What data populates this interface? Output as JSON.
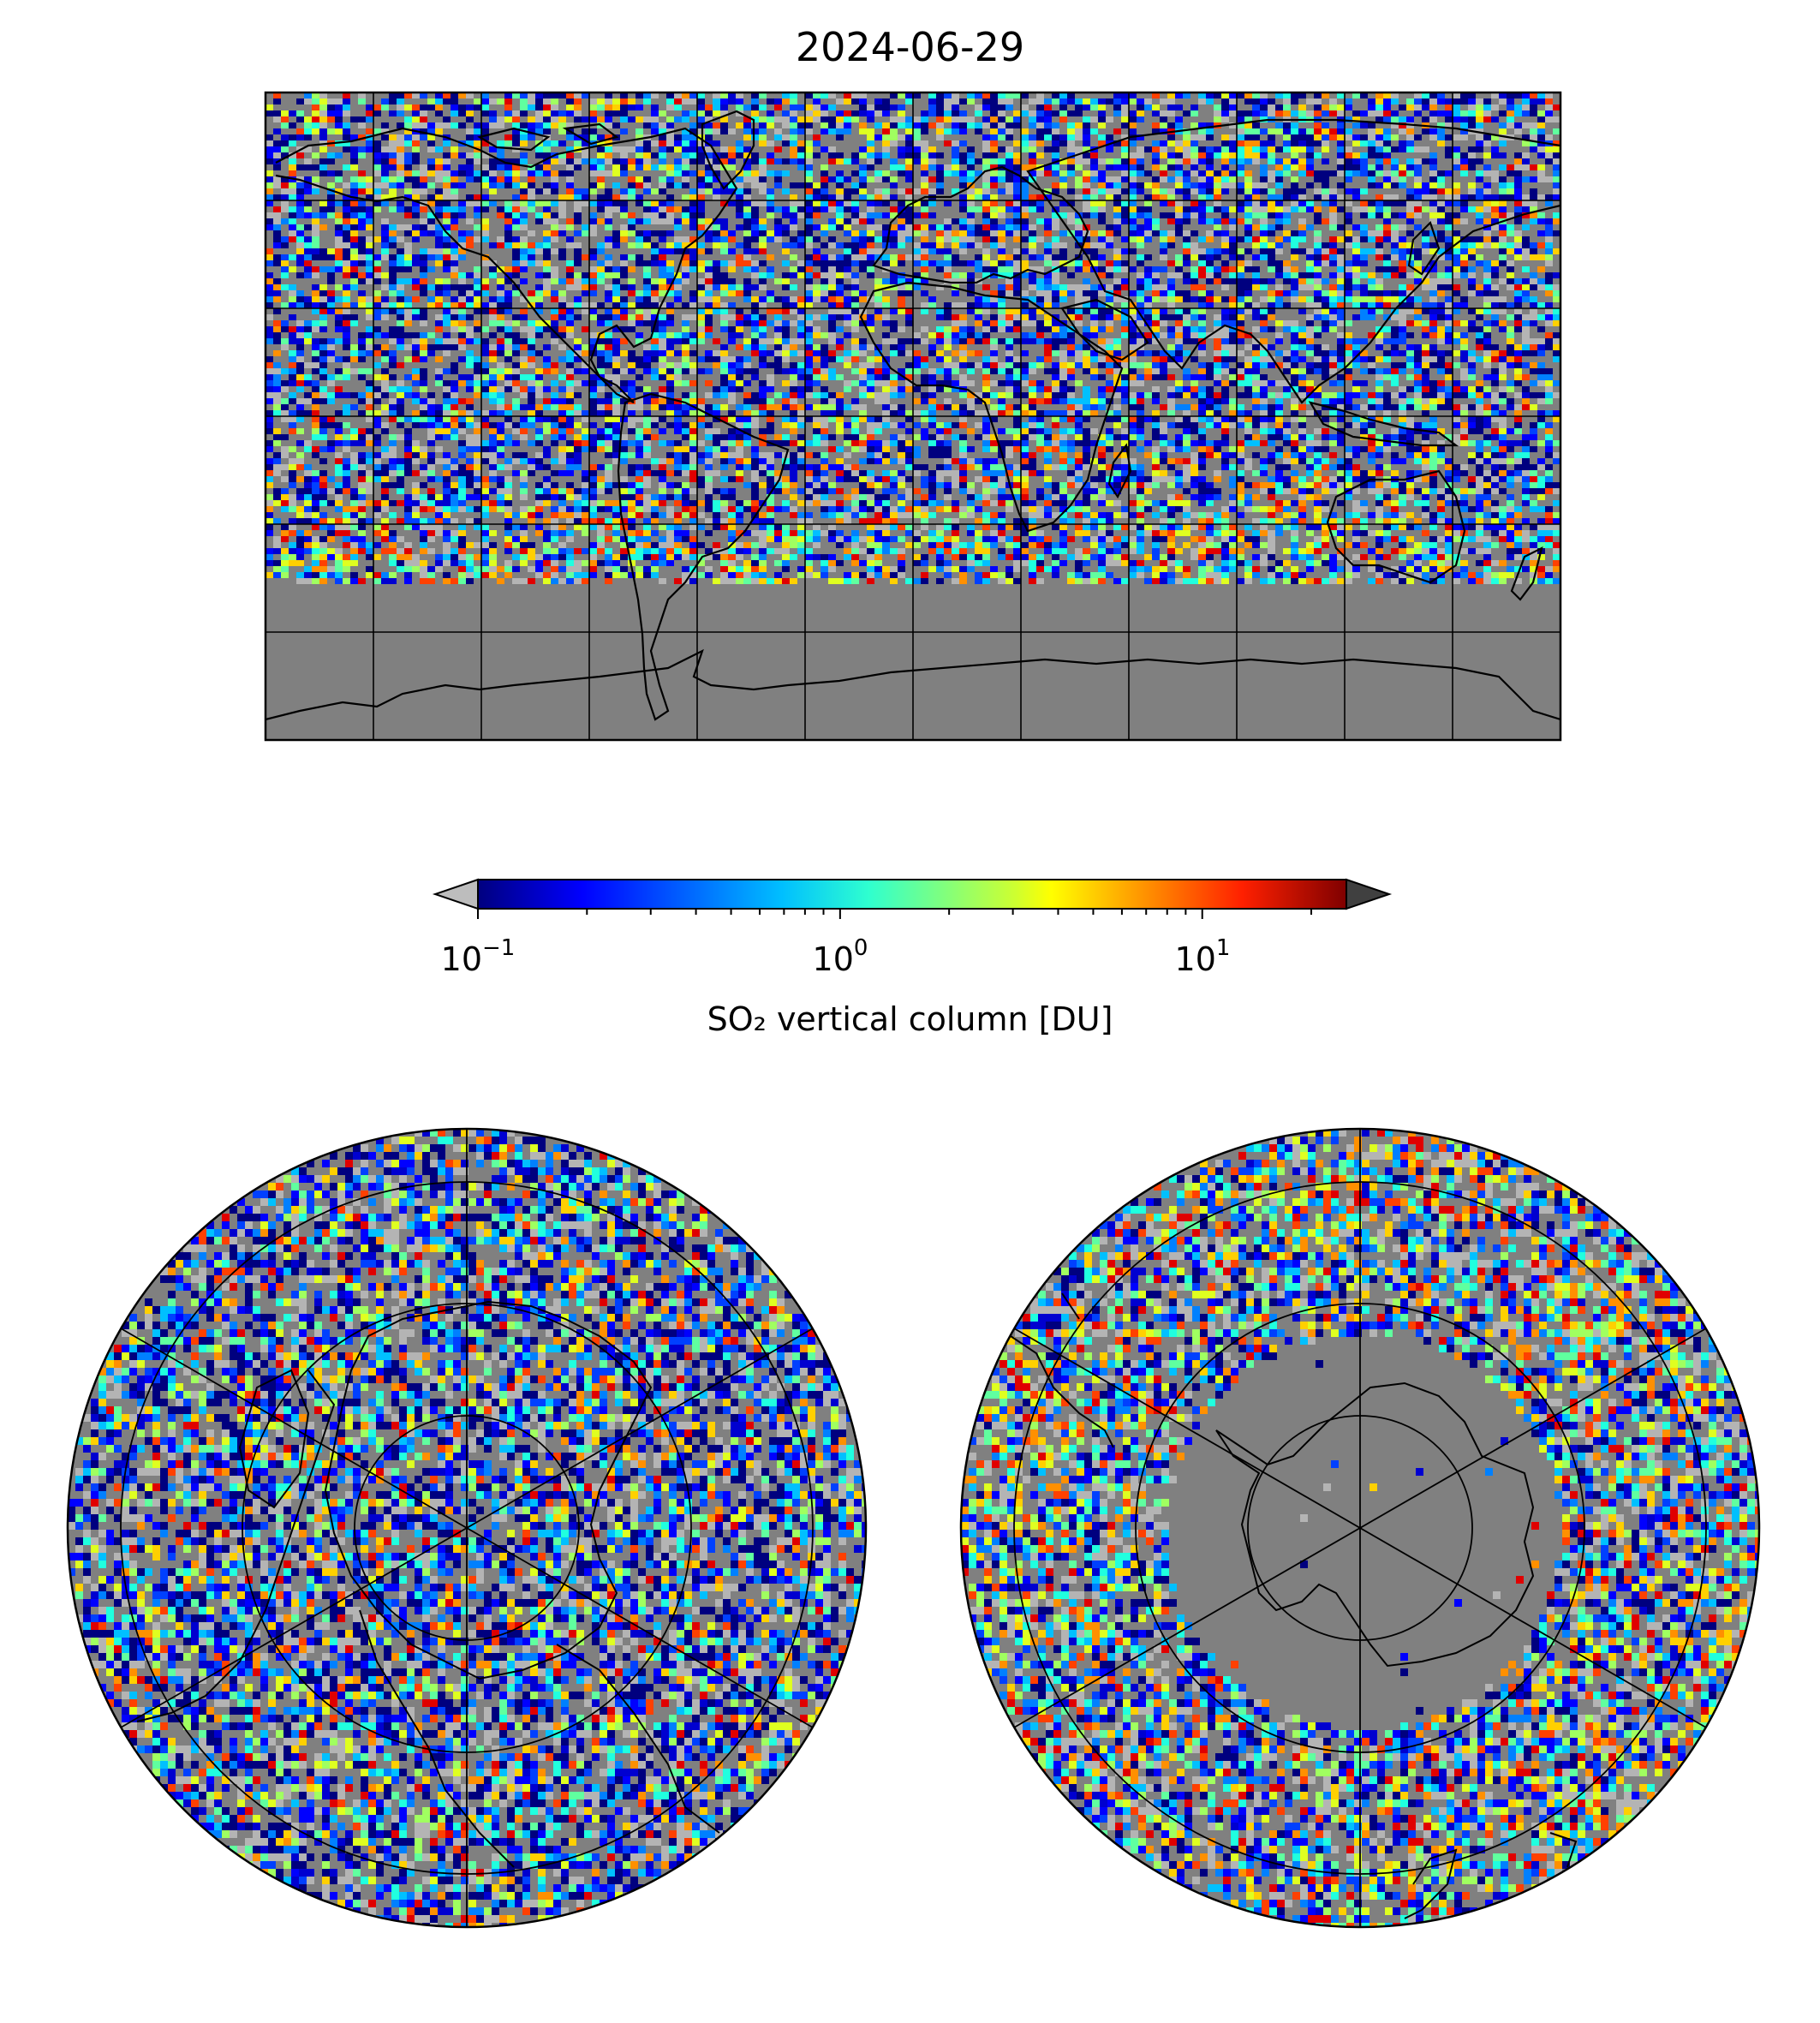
{
  "title": "2024-06-29",
  "colorbar": {
    "label": "SO₂ vertical column [DU]",
    "scale": "log",
    "ticks": [
      {
        "base": "10",
        "exp": "−1",
        "value": 0.1
      },
      {
        "base": "10",
        "exp": "0",
        "value": 1
      },
      {
        "base": "10",
        "exp": "1",
        "value": 10
      }
    ],
    "range": [
      0.1,
      25
    ],
    "extend": "both",
    "under_color": "#bdbdbd",
    "over_color": "#404040",
    "colormap": "jet"
  },
  "colors": {
    "background_no_data": "#808080",
    "low_value_gray": "#b4b4b4",
    "coastline": "#000000",
    "gridline": "#000000"
  },
  "maps": {
    "global": {
      "projection": "plate-carree",
      "grid_lon_step": 30,
      "grid_lat_step": 30
    },
    "north_pole": {
      "projection": "north-polar-stereographic"
    },
    "south_pole": {
      "projection": "south-polar-stereographic"
    }
  }
}
